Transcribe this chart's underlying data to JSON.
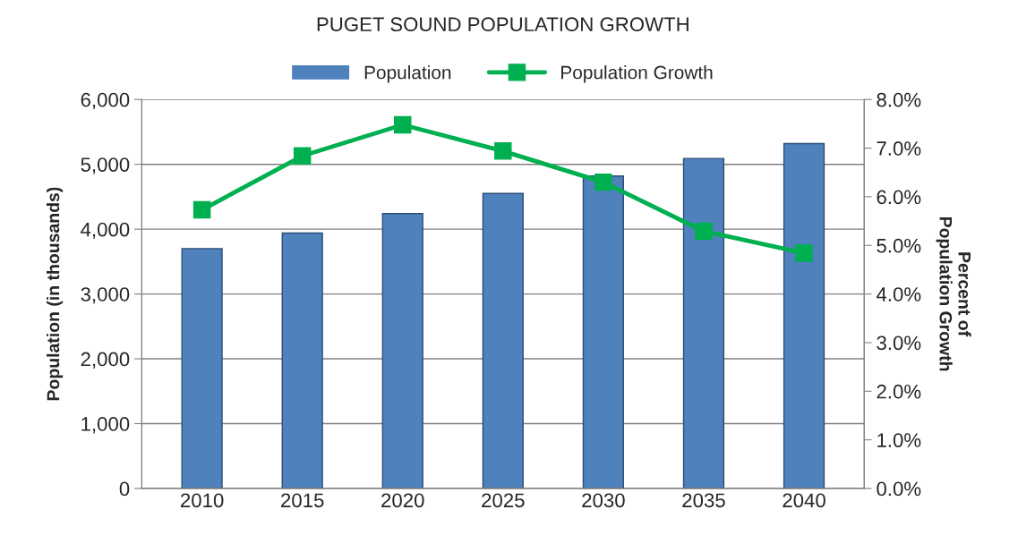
{
  "chart_data": {
    "type": "bar",
    "title": "PUGET SOUND POPULATION GROWTH",
    "ylabel": "Population (in thousands)",
    "y2label": "Percent of\nPopulation Growth",
    "categories": [
      "2010",
      "2015",
      "2020",
      "2025",
      "2030",
      "2035",
      "2040"
    ],
    "series": [
      {
        "name": "Population",
        "color": "#4f81bd",
        "values": [
          3700,
          3940,
          4240,
          4550,
          4820,
          5090,
          5320
        ]
      },
      {
        "name": "Population Growth",
        "type": "line",
        "axis": "y2",
        "color": "#00b050",
        "marker": "square",
        "line_style": "solid",
        "values": [
          5.73,
          6.84,
          7.48,
          6.94,
          6.3,
          5.29,
          4.84
        ]
      }
    ],
    "ylim": [
      0,
      6000
    ],
    "yticks": [
      {
        "value": 0,
        "label": "0"
      },
      {
        "value": 1000,
        "label": "1,000"
      },
      {
        "value": 2000,
        "label": "2,000"
      },
      {
        "value": 3000,
        "label": "3,000"
      },
      {
        "value": 4000,
        "label": "4,000"
      },
      {
        "value": 5000,
        "label": "5,000"
      },
      {
        "value": 6000,
        "label": "6,000"
      }
    ],
    "y2lim": [
      0,
      8
    ],
    "y2ticks": [
      {
        "value": 0,
        "label": "0.0%"
      },
      {
        "value": 1,
        "label": "1.0%"
      },
      {
        "value": 2,
        "label": "2.0%"
      },
      {
        "value": 3,
        "label": "3.0%"
      },
      {
        "value": 4,
        "label": "4.0%"
      },
      {
        "value": 5,
        "label": "5.0%"
      },
      {
        "value": 6,
        "label": "6.0%"
      },
      {
        "value": 7,
        "label": "7.0%"
      },
      {
        "value": 8,
        "label": "8.0%"
      }
    ],
    "grid": "y",
    "legend": "top"
  }
}
